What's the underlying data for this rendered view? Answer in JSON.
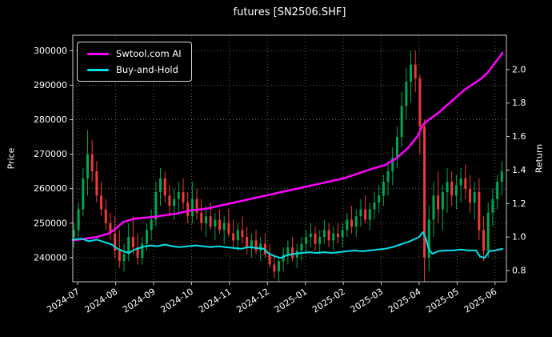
{
  "window": {
    "title": "futures [SN2506.SHF]"
  },
  "colors": {
    "background": "#000000",
    "text": "#ffffff",
    "grid": "#9a9a9a",
    "frame": "#c8c8c8",
    "up_candle": "#00a651",
    "down_candle": "#ee3b33",
    "ai_line": "#ff00ff",
    "buy_and_hold_line": "#00e0e6",
    "legend_border": "#d9d9d9"
  },
  "chart_data": {
    "type": "candlestick+line",
    "title": "futures [SN2506.SHF]",
    "grid": true,
    "grid_style": "dotted",
    "x_axis": {
      "tick_values": [
        0,
        1,
        2,
        3,
        4,
        5,
        6,
        7,
        8,
        9,
        10,
        11
      ],
      "tick_labels": [
        "2024-07",
        "2024-08",
        "2024-09",
        "2024-10",
        "2024-11",
        "2024-12",
        "2025-01",
        "2025-02",
        "2025-03",
        "2025-04",
        "2025-05",
        "2025-06"
      ],
      "lim": [
        -0.13,
        11.3
      ],
      "tick_label_rotation_deg": -33
    },
    "left_axis": {
      "label": "Price",
      "tick_values": [
        240000,
        250000,
        260000,
        270000,
        280000,
        290000,
        300000
      ],
      "tick_labels": [
        "240000",
        "250000",
        "260000",
        "270000",
        "280000",
        "290000",
        "300000"
      ],
      "lim": [
        233000,
        304500
      ]
    },
    "right_axis": {
      "label": "Return",
      "tick_values": [
        0.8,
        1.0,
        1.2,
        1.4,
        1.6,
        1.8,
        2.0
      ],
      "tick_labels": [
        "0.8",
        "1.0",
        "1.2",
        "1.4",
        "1.6",
        "1.8",
        "2.0"
      ],
      "lim": [
        0.733,
        2.205
      ]
    },
    "legend": {
      "position": "upper-left",
      "entries": [
        {
          "label": "Swtool.com AI",
          "color": "#ff00ff"
        },
        {
          "label": "Buy-and-Hold",
          "color": "#00e0e6"
        }
      ]
    },
    "candles_format": [
      "t_months_from_2024_07",
      "open",
      "high",
      "low",
      "close"
    ],
    "candles": [
      [
        -0.1,
        246000,
        250000,
        243000,
        248000
      ],
      [
        0.02,
        248000,
        256000,
        246000,
        254000
      ],
      [
        0.14,
        254000,
        266000,
        252000,
        263000
      ],
      [
        0.26,
        263000,
        277000,
        258000,
        270000
      ],
      [
        0.38,
        270000,
        274000,
        262000,
        265000
      ],
      [
        0.5,
        265000,
        268000,
        256000,
        258000
      ],
      [
        0.62,
        258000,
        262000,
        252000,
        254000
      ],
      [
        0.74,
        254000,
        257000,
        248000,
        250000
      ],
      [
        0.86,
        250000,
        253000,
        245000,
        247000
      ],
      [
        0.98,
        247000,
        252000,
        240000,
        242000
      ],
      [
        1.1,
        242000,
        248000,
        237000,
        239000
      ],
      [
        1.22,
        239000,
        244000,
        236000,
        241000
      ],
      [
        1.34,
        241000,
        250000,
        239000,
        246000
      ],
      [
        1.46,
        246000,
        252000,
        241000,
        243000
      ],
      [
        1.58,
        243000,
        247000,
        238000,
        240000
      ],
      [
        1.7,
        240000,
        246000,
        238000,
        244000
      ],
      [
        1.82,
        244000,
        250000,
        242000,
        248000
      ],
      [
        1.94,
        248000,
        254000,
        245000,
        251000
      ],
      [
        2.06,
        251000,
        262000,
        249000,
        259000
      ],
      [
        2.18,
        259000,
        266000,
        255000,
        263000
      ],
      [
        2.3,
        263000,
        265000,
        256000,
        258000
      ],
      [
        2.42,
        258000,
        261000,
        252000,
        255000
      ],
      [
        2.54,
        255000,
        260000,
        251000,
        257000
      ],
      [
        2.66,
        257000,
        262000,
        253000,
        259000
      ],
      [
        2.78,
        259000,
        263000,
        254000,
        256000
      ],
      [
        2.9,
        256000,
        259000,
        250000,
        252000
      ],
      [
        3.02,
        252000,
        262000,
        250000,
        257000
      ],
      [
        3.14,
        257000,
        260000,
        251000,
        253000
      ],
      [
        3.26,
        253000,
        257000,
        248000,
        250000
      ],
      [
        3.38,
        250000,
        255000,
        246000,
        252000
      ],
      [
        3.5,
        252000,
        256000,
        248000,
        249000
      ],
      [
        3.62,
        249000,
        253000,
        245000,
        251000
      ],
      [
        3.74,
        251000,
        254000,
        247000,
        248000
      ],
      [
        3.86,
        248000,
        252000,
        244000,
        250000
      ],
      [
        3.98,
        250000,
        254000,
        246000,
        247000
      ],
      [
        4.1,
        247000,
        251000,
        243000,
        245000
      ],
      [
        4.22,
        245000,
        250000,
        242000,
        248000
      ],
      [
        4.34,
        248000,
        252000,
        244000,
        246000
      ],
      [
        4.46,
        246000,
        249000,
        241000,
        243000
      ],
      [
        4.58,
        243000,
        247000,
        240000,
        245000
      ],
      [
        4.7,
        245000,
        248000,
        241000,
        242000
      ],
      [
        4.82,
        242000,
        246000,
        239000,
        244000
      ],
      [
        4.94,
        244000,
        247000,
        240000,
        241000
      ],
      [
        5.06,
        241000,
        244000,
        237000,
        238000
      ],
      [
        5.18,
        238000,
        241000,
        234000,
        236000
      ],
      [
        5.3,
        236000,
        240000,
        233000,
        239000
      ],
      [
        5.42,
        239000,
        243000,
        236000,
        241000
      ],
      [
        5.54,
        241000,
        245000,
        238000,
        243000
      ],
      [
        5.66,
        243000,
        246000,
        239000,
        240000
      ],
      [
        5.78,
        240000,
        244000,
        237000,
        242000
      ],
      [
        5.9,
        242000,
        246000,
        239000,
        244000
      ],
      [
        6.02,
        244000,
        248000,
        241000,
        246000
      ],
      [
        6.14,
        246000,
        250000,
        243000,
        247000
      ],
      [
        6.26,
        247000,
        249000,
        242000,
        244000
      ],
      [
        6.38,
        244000,
        248000,
        241000,
        246000
      ],
      [
        6.5,
        246000,
        251000,
        244000,
        248000
      ],
      [
        6.62,
        248000,
        250000,
        243000,
        245000
      ],
      [
        6.74,
        245000,
        249000,
        242000,
        247000
      ],
      [
        6.86,
        247000,
        250000,
        244000,
        246000
      ],
      [
        6.98,
        246000,
        250000,
        243000,
        248000
      ],
      [
        7.1,
        248000,
        253000,
        246000,
        251000
      ],
      [
        7.22,
        251000,
        255000,
        247000,
        249000
      ],
      [
        7.34,
        249000,
        254000,
        246000,
        252000
      ],
      [
        7.46,
        252000,
        257000,
        249000,
        254000
      ],
      [
        7.58,
        254000,
        258000,
        250000,
        251000
      ],
      [
        7.7,
        251000,
        256000,
        248000,
        254000
      ],
      [
        7.82,
        254000,
        259000,
        251000,
        256000
      ],
      [
        7.94,
        256000,
        261000,
        253000,
        258000
      ],
      [
        8.06,
        258000,
        264000,
        255000,
        262000
      ],
      [
        8.18,
        262000,
        268000,
        258000,
        265000
      ],
      [
        8.3,
        265000,
        272000,
        261000,
        269000
      ],
      [
        8.42,
        269000,
        278000,
        266000,
        275000
      ],
      [
        8.54,
        275000,
        288000,
        272000,
        284000
      ],
      [
        8.66,
        284000,
        295000,
        280000,
        291000
      ],
      [
        8.78,
        291000,
        300000,
        285000,
        296000
      ],
      [
        8.9,
        296000,
        300000,
        288000,
        292000
      ],
      [
        9.02,
        292000,
        293000,
        270000,
        278000
      ],
      [
        9.14,
        278000,
        280000,
        233000,
        240000
      ],
      [
        9.26,
        240000,
        255000,
        236000,
        251000
      ],
      [
        9.38,
        251000,
        262000,
        246000,
        258000
      ],
      [
        9.5,
        258000,
        265000,
        250000,
        254000
      ],
      [
        9.62,
        254000,
        261000,
        248000,
        259000
      ],
      [
        9.74,
        259000,
        266000,
        253000,
        262000
      ],
      [
        9.86,
        262000,
        265000,
        255000,
        258000
      ],
      [
        9.98,
        258000,
        264000,
        254000,
        261000
      ],
      [
        10.1,
        261000,
        266000,
        256000,
        263000
      ],
      [
        10.22,
        263000,
        267000,
        257000,
        260000
      ],
      [
        10.34,
        260000,
        264000,
        253000,
        256000
      ],
      [
        10.46,
        256000,
        262000,
        251000,
        259000
      ],
      [
        10.58,
        259000,
        263000,
        245000,
        248000
      ],
      [
        10.7,
        248000,
        252000,
        239000,
        242000
      ],
      [
        10.82,
        242000,
        256000,
        240000,
        253000
      ],
      [
        10.94,
        253000,
        260000,
        249000,
        257000
      ],
      [
        11.06,
        257000,
        264000,
        254000,
        262000
      ],
      [
        11.18,
        262000,
        268000,
        258000,
        265000
      ]
    ],
    "series": [
      {
        "name": "Swtool.com AI",
        "axis": "return",
        "color": "#ff00ff",
        "points": [
          [
            -0.13,
            0.98
          ],
          [
            0.2,
            0.99
          ],
          [
            0.5,
            1.0
          ],
          [
            0.8,
            1.02
          ],
          [
            1.0,
            1.05
          ],
          [
            1.2,
            1.09
          ],
          [
            1.5,
            1.11
          ],
          [
            2.0,
            1.12
          ],
          [
            2.3,
            1.13
          ],
          [
            2.6,
            1.14
          ],
          [
            3.0,
            1.16
          ],
          [
            3.4,
            1.17
          ],
          [
            3.8,
            1.19
          ],
          [
            4.2,
            1.21
          ],
          [
            4.6,
            1.23
          ],
          [
            5.0,
            1.25
          ],
          [
            5.4,
            1.27
          ],
          [
            5.8,
            1.29
          ],
          [
            6.2,
            1.31
          ],
          [
            6.6,
            1.33
          ],
          [
            7.0,
            1.35
          ],
          [
            7.4,
            1.38
          ],
          [
            7.8,
            1.41
          ],
          [
            8.1,
            1.43
          ],
          [
            8.4,
            1.47
          ],
          [
            8.7,
            1.53
          ],
          [
            8.95,
            1.6
          ],
          [
            9.1,
            1.67
          ],
          [
            9.25,
            1.7
          ],
          [
            9.5,
            1.74
          ],
          [
            9.8,
            1.8
          ],
          [
            10.0,
            1.84
          ],
          [
            10.2,
            1.88
          ],
          [
            10.4,
            1.91
          ],
          [
            10.6,
            1.94
          ],
          [
            10.8,
            1.98
          ],
          [
            11.0,
            2.04
          ],
          [
            11.2,
            2.1
          ]
        ]
      },
      {
        "name": "Buy-and-Hold",
        "axis": "return",
        "color": "#00e0e6",
        "points": [
          [
            -0.13,
            0.985
          ],
          [
            0.1,
            0.99
          ],
          [
            0.3,
            0.975
          ],
          [
            0.5,
            0.985
          ],
          [
            0.7,
            0.97
          ],
          [
            0.9,
            0.955
          ],
          [
            1.05,
            0.93
          ],
          [
            1.2,
            0.915
          ],
          [
            1.35,
            0.905
          ],
          [
            1.5,
            0.925
          ],
          [
            1.7,
            0.94
          ],
          [
            1.9,
            0.95
          ],
          [
            2.1,
            0.945
          ],
          [
            2.3,
            0.955
          ],
          [
            2.5,
            0.945
          ],
          [
            2.7,
            0.94
          ],
          [
            2.9,
            0.945
          ],
          [
            3.1,
            0.95
          ],
          [
            3.3,
            0.945
          ],
          [
            3.5,
            0.94
          ],
          [
            3.7,
            0.945
          ],
          [
            3.9,
            0.94
          ],
          [
            4.1,
            0.935
          ],
          [
            4.3,
            0.93
          ],
          [
            4.5,
            0.94
          ],
          [
            4.7,
            0.935
          ],
          [
            4.9,
            0.93
          ],
          [
            5.05,
            0.9
          ],
          [
            5.2,
            0.885
          ],
          [
            5.35,
            0.875
          ],
          [
            5.5,
            0.89
          ],
          [
            5.7,
            0.9
          ],
          [
            5.9,
            0.905
          ],
          [
            6.1,
            0.91
          ],
          [
            6.3,
            0.905
          ],
          [
            6.5,
            0.91
          ],
          [
            6.7,
            0.905
          ],
          [
            6.9,
            0.91
          ],
          [
            7.1,
            0.915
          ],
          [
            7.3,
            0.92
          ],
          [
            7.5,
            0.915
          ],
          [
            7.7,
            0.92
          ],
          [
            7.9,
            0.925
          ],
          [
            8.1,
            0.93
          ],
          [
            8.3,
            0.94
          ],
          [
            8.5,
            0.955
          ],
          [
            8.7,
            0.97
          ],
          [
            8.85,
            0.985
          ],
          [
            9.0,
            1.0
          ],
          [
            9.1,
            1.03
          ],
          [
            9.18,
            0.99
          ],
          [
            9.25,
            0.93
          ],
          [
            9.35,
            0.9
          ],
          [
            9.5,
            0.915
          ],
          [
            9.7,
            0.92
          ],
          [
            9.9,
            0.92
          ],
          [
            10.1,
            0.925
          ],
          [
            10.3,
            0.92
          ],
          [
            10.5,
            0.92
          ],
          [
            10.6,
            0.885
          ],
          [
            10.72,
            0.875
          ],
          [
            10.85,
            0.915
          ],
          [
            11.0,
            0.92
          ],
          [
            11.2,
            0.93
          ]
        ]
      }
    ]
  }
}
